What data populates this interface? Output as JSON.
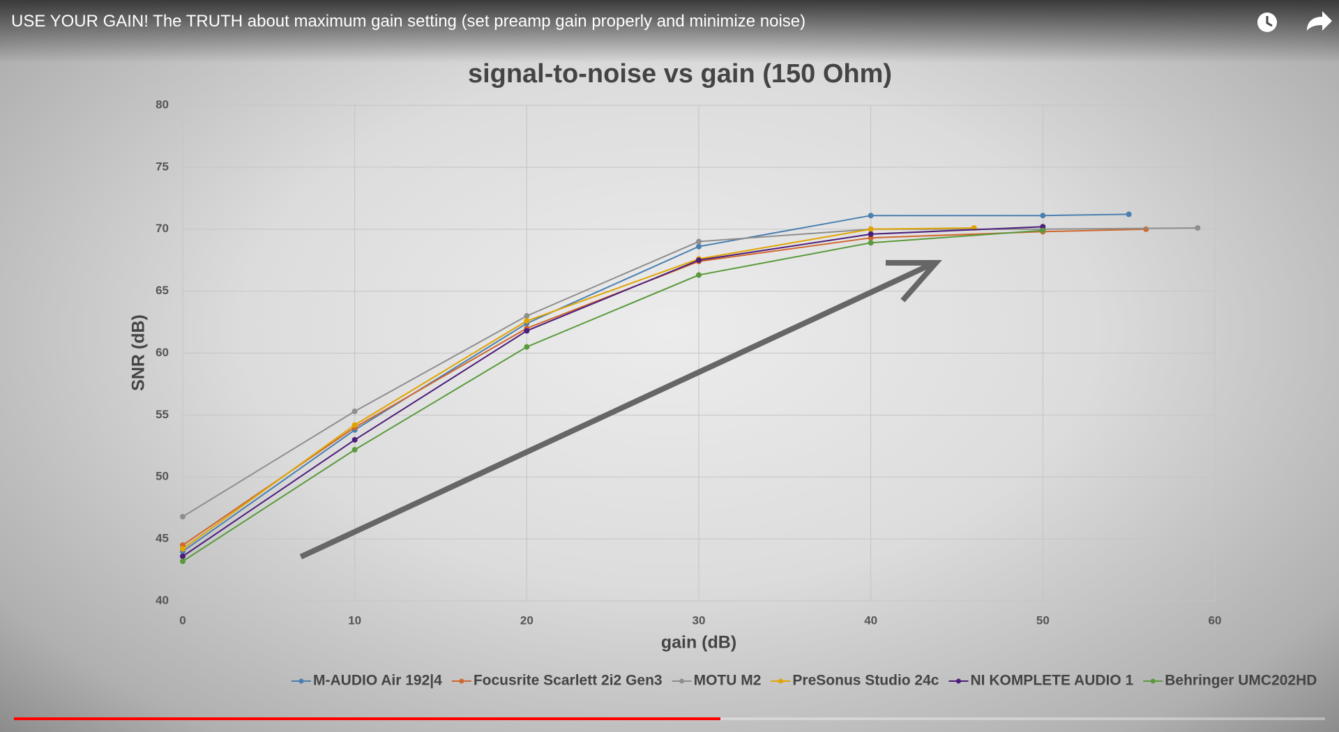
{
  "video_title": "USE YOUR GAIN! The TRUTH about maximum gain setting (set preamp gain properly and minimize noise)",
  "chart_data": {
    "type": "line",
    "title": "signal-to-noise vs gain (150 Ohm)",
    "x_label": "gain (dB)",
    "y_label": "SNR (dB)",
    "xlim": [
      0,
      60
    ],
    "xticks": [
      0,
      10,
      20,
      30,
      40,
      50,
      60
    ],
    "ylim": [
      40,
      80
    ],
    "yticks": [
      40,
      45,
      50,
      55,
      60,
      65,
      70,
      75,
      80
    ],
    "grid": true,
    "legend": "bottom",
    "series": [
      {
        "name": "M-AUDIO Air 192|4",
        "color": "#4a7fb0",
        "x": [
          0,
          10,
          20,
          30,
          40,
          50,
          55
        ],
        "values": [
          44.0,
          53.8,
          62.4,
          68.6,
          71.1,
          71.1,
          71.2
        ]
      },
      {
        "name": "Focusrite Scarlett 2i2 Gen3",
        "color": "#d0672e",
        "x": [
          0,
          10,
          20,
          30,
          40,
          50,
          56
        ],
        "values": [
          44.5,
          54.0,
          62.0,
          67.4,
          69.3,
          69.8,
          70.0
        ]
      },
      {
        "name": "MOTU M2",
        "color": "#8e8e8e",
        "x": [
          0,
          10,
          20,
          30,
          40,
          50,
          59
        ],
        "values": [
          46.8,
          55.3,
          63.0,
          69.0,
          70.0,
          70.0,
          70.1
        ]
      },
      {
        "name": "PreSonus Studio 24c",
        "color": "#e0a400",
        "x": [
          0,
          10,
          20,
          30,
          40,
          46
        ],
        "values": [
          44.2,
          54.2,
          62.6,
          67.6,
          70.0,
          70.1
        ]
      },
      {
        "name": "NI KOMPLETE AUDIO 1",
        "color": "#4b1d7a",
        "x": [
          0,
          10,
          20,
          30,
          40,
          50
        ],
        "values": [
          43.6,
          53.0,
          61.8,
          67.5,
          69.6,
          70.2
        ]
      },
      {
        "name": "Behringer UMC202HD",
        "color": "#5a9a3c",
        "x": [
          0,
          10,
          20,
          30,
          40,
          50
        ],
        "values": [
          43.2,
          52.2,
          60.5,
          66.3,
          68.9,
          69.9
        ]
      }
    ]
  }
}
